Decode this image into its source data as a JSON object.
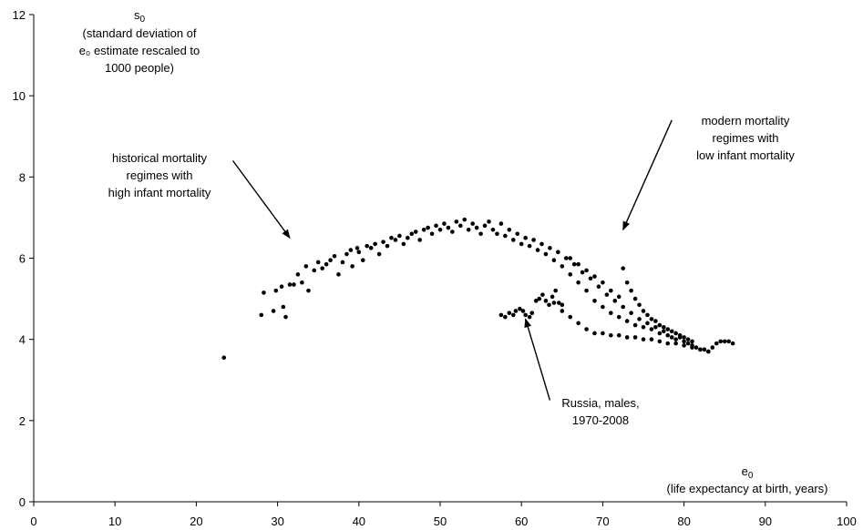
{
  "chart_data": {
    "type": "scatter",
    "xlim": [
      0,
      100
    ],
    "ylim": [
      0,
      12
    ],
    "x_ticks": [
      "0",
      "10",
      "20",
      "30",
      "40",
      "50",
      "60",
      "70",
      "80",
      "90",
      "100"
    ],
    "y_ticks": [
      "0",
      "2",
      "4",
      "6",
      "8",
      "10",
      "12"
    ],
    "grid": false,
    "marker_color": "#000000",
    "y_axis_title": {
      "symbol": "s",
      "subscript": "0",
      "lines": [
        "(standard deviation of",
        "e₀ estimate rescaled to",
        "1000 people)"
      ]
    },
    "x_axis_title": {
      "symbol": "e",
      "subscript": "0",
      "line": "(life expectancy at birth, years)"
    },
    "annotations": [
      {
        "id": "historical",
        "lines": [
          "historical mortality",
          "regimes with",
          "high infant mortality"
        ],
        "arrow_from": [
          24.5,
          8.4
        ],
        "arrow_to": [
          31.5,
          6.5
        ]
      },
      {
        "id": "modern",
        "lines": [
          "modern mortality",
          "regimes with",
          "low infant mortality"
        ],
        "arrow_from": [
          78.5,
          9.4
        ],
        "arrow_to": [
          72.5,
          6.7
        ]
      },
      {
        "id": "russia",
        "lines": [
          "Russia, males,",
          "1970-2008"
        ],
        "arrow_from": [
          63.5,
          2.5
        ],
        "arrow_to": [
          60.5,
          4.5
        ]
      }
    ],
    "series": [
      {
        "group": "historical-to-modern",
        "points": [
          [
            23.4,
            3.55
          ],
          [
            28.0,
            4.6
          ],
          [
            28.3,
            5.15
          ],
          [
            29.5,
            4.7
          ],
          [
            29.8,
            5.2
          ],
          [
            30.5,
            5.3
          ],
          [
            30.7,
            4.8
          ],
          [
            31.0,
            4.55
          ],
          [
            31.5,
            5.35
          ],
          [
            32.0,
            5.35
          ],
          [
            32.5,
            5.6
          ],
          [
            33.0,
            5.4
          ],
          [
            33.5,
            5.8
          ],
          [
            33.8,
            5.2
          ],
          [
            34.5,
            5.7
          ],
          [
            35.0,
            5.9
          ],
          [
            35.5,
            5.75
          ],
          [
            36.0,
            5.85
          ],
          [
            36.5,
            5.95
          ],
          [
            37.0,
            6.05
          ],
          [
            37.5,
            5.6
          ],
          [
            38.0,
            5.9
          ],
          [
            38.5,
            6.1
          ],
          [
            39.0,
            6.2
          ],
          [
            39.2,
            5.8
          ],
          [
            39.8,
            6.25
          ],
          [
            40.0,
            6.15
          ],
          [
            40.5,
            5.95
          ],
          [
            41.0,
            6.3
          ],
          [
            41.5,
            6.25
          ],
          [
            42.0,
            6.35
          ],
          [
            42.5,
            6.1
          ],
          [
            43.0,
            6.4
          ],
          [
            43.5,
            6.3
          ],
          [
            44.0,
            6.5
          ],
          [
            44.5,
            6.45
          ],
          [
            45.0,
            6.55
          ],
          [
            45.5,
            6.35
          ],
          [
            46.0,
            6.5
          ],
          [
            46.5,
            6.6
          ],
          [
            47.0,
            6.65
          ],
          [
            47.5,
            6.45
          ],
          [
            48.0,
            6.7
          ],
          [
            48.5,
            6.75
          ],
          [
            49.0,
            6.6
          ],
          [
            49.5,
            6.8
          ],
          [
            50.0,
            6.7
          ],
          [
            50.5,
            6.85
          ],
          [
            51.0,
            6.75
          ],
          [
            51.5,
            6.65
          ],
          [
            52.0,
            6.9
          ],
          [
            52.5,
            6.8
          ],
          [
            53.0,
            6.95
          ],
          [
            53.5,
            6.7
          ],
          [
            54.0,
            6.85
          ],
          [
            54.5,
            6.75
          ],
          [
            55.0,
            6.6
          ],
          [
            55.5,
            6.8
          ],
          [
            56.0,
            6.9
          ],
          [
            56.5,
            6.7
          ],
          [
            57.0,
            6.6
          ],
          [
            57.5,
            6.85
          ],
          [
            58.0,
            6.55
          ],
          [
            58.5,
            6.7
          ],
          [
            59.0,
            6.45
          ],
          [
            59.5,
            6.6
          ],
          [
            60.0,
            6.35
          ],
          [
            60.5,
            6.5
          ],
          [
            61.0,
            6.3
          ],
          [
            61.5,
            6.45
          ],
          [
            62.0,
            6.2
          ],
          [
            62.5,
            6.35
          ],
          [
            63.0,
            6.1
          ],
          [
            63.5,
            6.25
          ],
          [
            64.0,
            5.95
          ],
          [
            64.5,
            6.15
          ],
          [
            65.0,
            5.8
          ],
          [
            65.5,
            6.0
          ],
          [
            66.0,
            5.6
          ],
          [
            66.5,
            5.85
          ],
          [
            67.0,
            5.4
          ],
          [
            67.5,
            5.65
          ],
          [
            68.0,
            5.2
          ],
          [
            68.5,
            5.5
          ],
          [
            69.0,
            4.95
          ],
          [
            69.5,
            5.3
          ],
          [
            70.0,
            4.8
          ],
          [
            70.5,
            5.1
          ],
          [
            71.0,
            4.65
          ],
          [
            71.5,
            4.95
          ],
          [
            72.0,
            4.55
          ],
          [
            72.5,
            4.8
          ],
          [
            73.0,
            4.45
          ],
          [
            73.5,
            4.65
          ],
          [
            74.0,
            4.35
          ],
          [
            74.5,
            4.5
          ],
          [
            75.0,
            4.3
          ],
          [
            75.5,
            4.4
          ],
          [
            76.0,
            4.25
          ],
          [
            76.5,
            4.3
          ],
          [
            77.0,
            4.15
          ],
          [
            77.5,
            4.2
          ],
          [
            78.0,
            4.1
          ],
          [
            78.5,
            4.05
          ],
          [
            79.0,
            4.0
          ],
          [
            79.5,
            4.05
          ],
          [
            80.0,
            3.95
          ],
          [
            80.5,
            3.9
          ],
          [
            81.0,
            3.85
          ],
          [
            81.5,
            3.8
          ],
          [
            82.0,
            3.75
          ],
          [
            82.5,
            3.75
          ],
          [
            83.0,
            3.7
          ],
          [
            83.5,
            3.8
          ],
          [
            84.0,
            3.9
          ],
          [
            84.5,
            3.95
          ],
          [
            85.0,
            3.95
          ],
          [
            85.5,
            3.95
          ],
          [
            86.0,
            3.9
          ]
        ]
      },
      {
        "group": "modern-upper",
        "points": [
          [
            66.0,
            6.0
          ],
          [
            67.0,
            5.85
          ],
          [
            68.0,
            5.7
          ],
          [
            69.0,
            5.55
          ],
          [
            70.0,
            5.4
          ],
          [
            71.0,
            5.2
          ],
          [
            72.0,
            5.05
          ],
          [
            72.5,
            5.75
          ],
          [
            73.0,
            5.4
          ],
          [
            73.5,
            5.2
          ],
          [
            74.0,
            5.0
          ],
          [
            74.5,
            4.85
          ],
          [
            75.0,
            4.7
          ],
          [
            75.5,
            4.6
          ],
          [
            76.0,
            4.5
          ],
          [
            76.5,
            4.45
          ],
          [
            77.0,
            4.35
          ],
          [
            77.5,
            4.3
          ],
          [
            78.0,
            4.25
          ],
          [
            78.5,
            4.2
          ],
          [
            79.0,
            4.15
          ],
          [
            79.5,
            4.1
          ],
          [
            80.0,
            4.05
          ],
          [
            80.5,
            4.0
          ],
          [
            81.0,
            3.95
          ]
        ]
      },
      {
        "group": "modern-lower",
        "points": [
          [
            64.0,
            4.9
          ],
          [
            65.0,
            4.7
          ],
          [
            66.0,
            4.55
          ],
          [
            67.0,
            4.4
          ],
          [
            68.0,
            4.25
          ],
          [
            69.0,
            4.15
          ],
          [
            70.0,
            4.15
          ],
          [
            71.0,
            4.1
          ],
          [
            72.0,
            4.1
          ],
          [
            73.0,
            4.05
          ],
          [
            74.0,
            4.05
          ],
          [
            75.0,
            4.0
          ],
          [
            76.0,
            4.0
          ],
          [
            77.0,
            3.95
          ],
          [
            78.0,
            3.9
          ],
          [
            79.0,
            3.9
          ],
          [
            80.0,
            3.85
          ],
          [
            81.0,
            3.8
          ],
          [
            82.0,
            3.75
          ],
          [
            83.0,
            3.7
          ]
        ]
      },
      {
        "group": "russia-males",
        "points": [
          [
            57.5,
            4.6
          ],
          [
            58.0,
            4.55
          ],
          [
            58.5,
            4.65
          ],
          [
            59.0,
            4.6
          ],
          [
            59.3,
            4.7
          ],
          [
            59.8,
            4.75
          ],
          [
            60.2,
            4.7
          ],
          [
            60.5,
            4.6
          ],
          [
            61.0,
            4.55
          ],
          [
            61.3,
            4.65
          ],
          [
            61.8,
            4.95
          ],
          [
            62.2,
            5.0
          ],
          [
            62.6,
            5.1
          ],
          [
            63.0,
            4.95
          ],
          [
            63.4,
            4.85
          ],
          [
            63.8,
            5.05
          ],
          [
            64.2,
            5.2
          ],
          [
            64.6,
            4.9
          ],
          [
            65.0,
            4.85
          ]
        ]
      }
    ]
  }
}
